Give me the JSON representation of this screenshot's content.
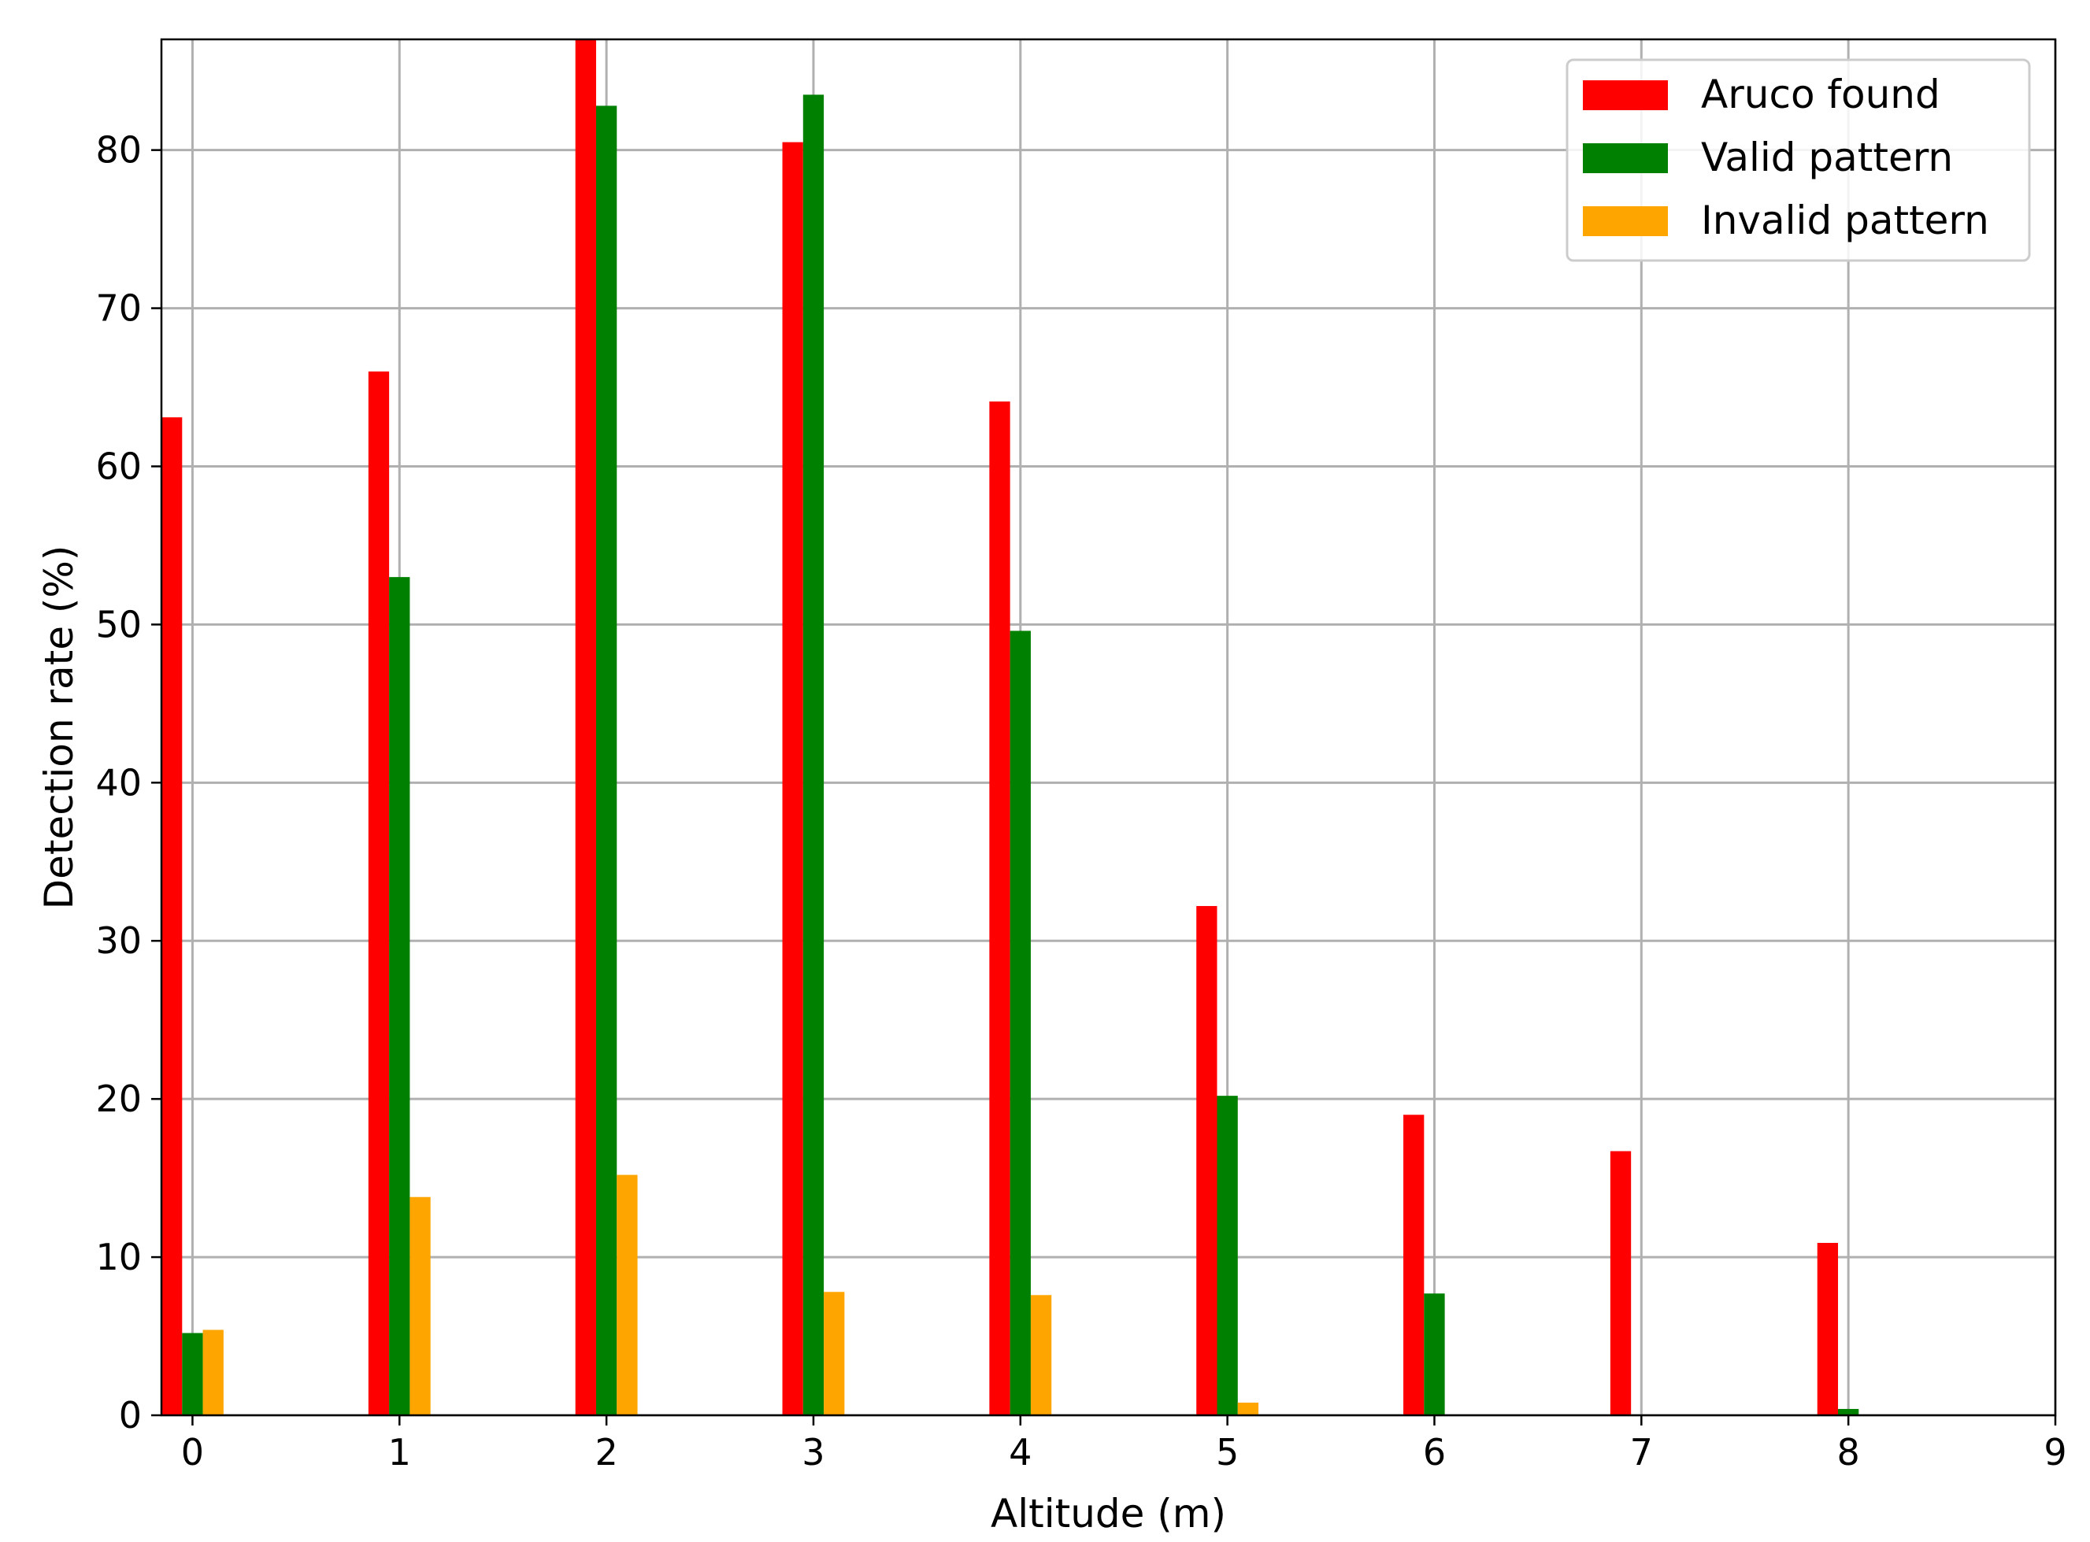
{
  "chart_data": {
    "type": "bar",
    "title": "",
    "xlabel": "Altitude (m)",
    "ylabel": "Detection rate (%)",
    "xlim": [
      -0.15,
      9
    ],
    "ylim": [
      0,
      87
    ],
    "x_ticks": [
      "0",
      "1",
      "2",
      "3",
      "4",
      "5",
      "6",
      "7",
      "8",
      "9"
    ],
    "y_ticks": [
      "0",
      "10",
      "20",
      "30",
      "40",
      "50",
      "60",
      "70",
      "80"
    ],
    "grid": true,
    "legend_position": "top-right",
    "categories": [
      "0",
      "1",
      "2",
      "3",
      "4",
      "5",
      "6",
      "7",
      "8"
    ],
    "series": [
      {
        "name": "Aruco found",
        "color": "#ff0000",
        "values": [
          63.1,
          66.0,
          87.0,
          80.5,
          64.1,
          32.2,
          19.0,
          16.7,
          10.9
        ]
      },
      {
        "name": "Valid pattern",
        "color": "#008000",
        "values": [
          5.2,
          53.0,
          82.8,
          83.5,
          49.6,
          20.2,
          7.7,
          0.0,
          0.4
        ]
      },
      {
        "name": "Invalid pattern",
        "color": "#ffa500",
        "values": [
          5.4,
          13.8,
          15.2,
          7.8,
          7.6,
          0.8,
          0.0,
          0.0,
          0.0
        ]
      }
    ]
  }
}
